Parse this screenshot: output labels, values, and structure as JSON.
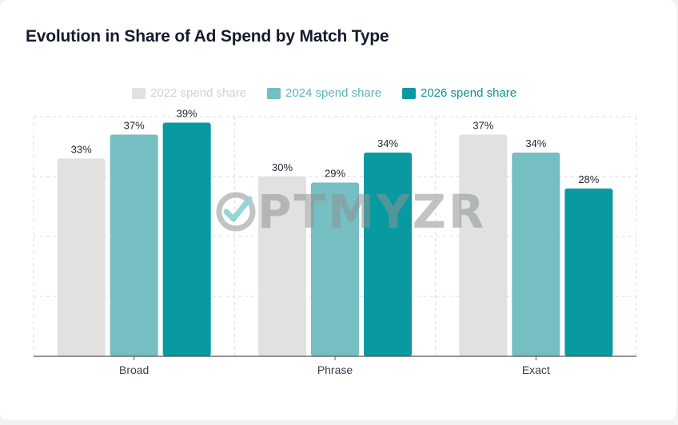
{
  "title": "Evolution in Share of Ad Spend by Match Type",
  "watermark": {
    "logo_icon": "check-circle-logo",
    "letters": "PTMYZR",
    "lettering": "OPTMYZR"
  },
  "colors": {
    "series_2022": "#e1e1e1",
    "series_2024": "#75bec2",
    "series_2026": "#089aa0",
    "legend_2022_text": "#cfd2d6",
    "legend_2024_text": "#5fb3b8",
    "legend_2026_text": "#0a9197",
    "grid": "#dcdcdc",
    "axis": "#555555"
  },
  "chart_data": {
    "type": "bar",
    "title": "Evolution in Share of Ad Spend by Match Type",
    "xlabel": "",
    "ylabel": "",
    "categories": [
      "Broad",
      "Phrase",
      "Exact"
    ],
    "series": [
      {
        "name": "2022 spend share",
        "values": [
          33,
          30,
          37
        ],
        "labels": [
          "33%",
          "30%",
          "37%"
        ]
      },
      {
        "name": "2024 spend share",
        "values": [
          37,
          29,
          34
        ],
        "labels": [
          "37%",
          "29%",
          "34%"
        ]
      },
      {
        "name": "2026 spend share",
        "values": [
          39,
          34,
          28
        ],
        "labels": [
          "39%",
          "34%",
          "28%"
        ]
      }
    ],
    "ylim": [
      0,
      40
    ],
    "y_ticks_shown": false,
    "grid": true,
    "legend_position": "top-center"
  }
}
